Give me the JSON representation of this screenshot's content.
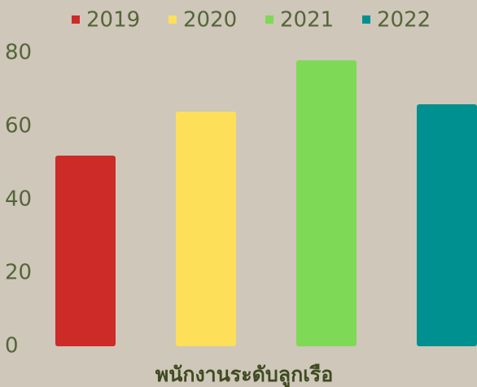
{
  "chart_data": {
    "type": "bar",
    "categories": [
      "พนักงานระดับลูกเรือ"
    ],
    "series": [
      {
        "name": "2019",
        "color": "#cc2b27",
        "values": [
          52
        ]
      },
      {
        "name": "2020",
        "color": "#fedf5a",
        "values": [
          64
        ]
      },
      {
        "name": "2021",
        "color": "#7ed957",
        "values": [
          78
        ]
      },
      {
        "name": "2022",
        "color": "#00908f",
        "values": [
          66
        ]
      }
    ],
    "ylim": [
      0,
      80
    ],
    "yticks": [
      0,
      20,
      40,
      60,
      80
    ],
    "grid": false,
    "legend": "top"
  }
}
